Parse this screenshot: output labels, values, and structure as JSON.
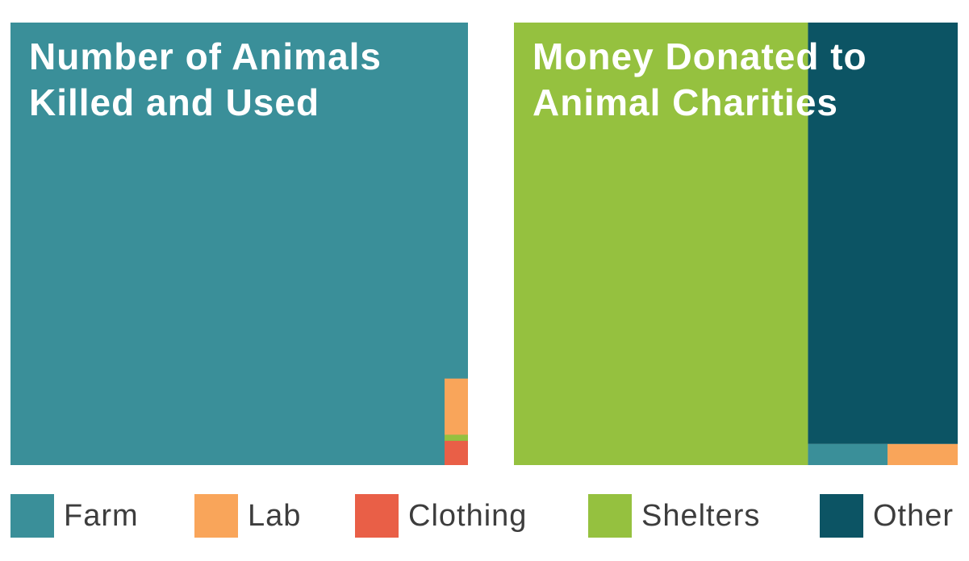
{
  "colors": {
    "Farm": "#3a8f99",
    "Lab": "#f9a55a",
    "Clothing": "#e95f47",
    "Shelters": "#95c13f",
    "Other": "#0c5464"
  },
  "legend": [
    {
      "label": "Farm",
      "color": "#3a8f99"
    },
    {
      "label": "Lab",
      "color": "#f9a55a"
    },
    {
      "label": "Clothing",
      "color": "#e95f47"
    },
    {
      "label": "Shelters",
      "color": "#95c13f"
    },
    {
      "label": "Other",
      "color": "#0c5464"
    }
  ],
  "chart_data": [
    {
      "type": "treemap",
      "title_lines": [
        "Number of Animals",
        "Killed and Used"
      ],
      "legend_placement": "bottom",
      "values_unit": "share of total (estimated)",
      "slices": [
        {
          "category": "Farm",
          "value": 0.99
        },
        {
          "category": "Lab",
          "value": 0.0065
        },
        {
          "category": "Shelters",
          "value": 0.0007
        },
        {
          "category": "Clothing",
          "value": 0.0028
        }
      ]
    },
    {
      "type": "treemap",
      "title_lines": [
        "Money Donated to",
        "Animal Charities"
      ],
      "legend_placement": "bottom",
      "values_unit": "share of total (estimated)",
      "slices": [
        {
          "category": "Shelters",
          "value": 0.66
        },
        {
          "category": "Other",
          "value": 0.32
        },
        {
          "category": "Farm",
          "value": 0.0085
        },
        {
          "category": "Lab",
          "value": 0.0075
        }
      ]
    }
  ]
}
